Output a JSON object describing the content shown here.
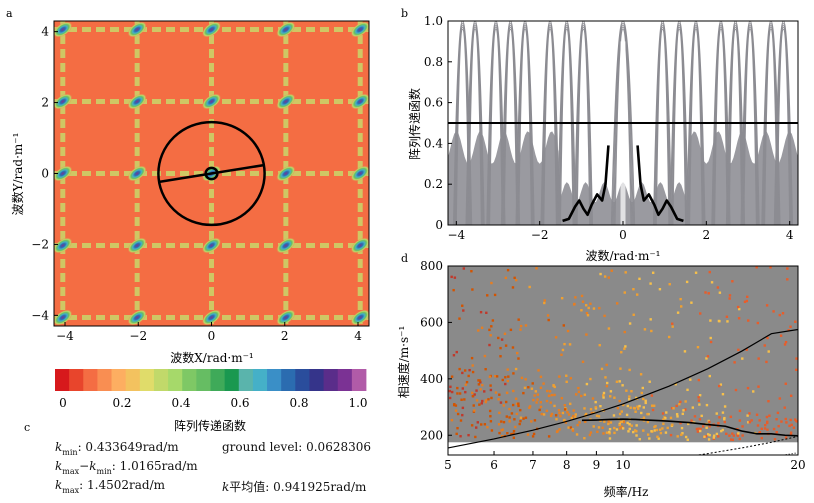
{
  "chart_data": [
    {
      "panel": "a",
      "type": "heatmap",
      "xlabel": "波数X/rad·m⁻¹",
      "ylabel": "波数Y/rad·m⁻¹",
      "xlim": [
        -4.3,
        4.3
      ],
      "ylim": [
        -4.3,
        4.3
      ],
      "xticks": [
        -4,
        -2,
        0,
        2,
        4
      ],
      "yticks": [
        -4,
        -2,
        0,
        2,
        4
      ],
      "tick_labels": [
        "−4",
        "−2",
        "0",
        "2",
        "4"
      ],
      "peak_spacing": 2.03,
      "circles_radius": [
        0.1,
        1.4502
      ],
      "line": {
        "x": [
          -1.45,
          1.45
        ],
        "y": [
          -0.24,
          0.24
        ]
      },
      "colorbar": {
        "label": "阵列传递函数",
        "ticks": [
          0,
          0.2,
          0.4,
          0.6,
          0.8,
          1.0
        ],
        "tick_labels": [
          "0",
          "0.2",
          "0.4",
          "0.6",
          "0.8",
          "1.0"
        ],
        "colors": [
          "#d7191c",
          "#e8452c",
          "#f46d43",
          "#f98e52",
          "#fdae61",
          "#f3c25f",
          "#e0dc6a",
          "#c1d96a",
          "#a6d96a",
          "#7ec865",
          "#66bd63",
          "#3faa59",
          "#1a9850",
          "#5ab4ac",
          "#45b0c8",
          "#3a8fc7",
          "#2b6cb0",
          "#2a4d9c",
          "#35348a",
          "#5a2d8a",
          "#7b3294",
          "#b15ba8"
        ]
      }
    },
    {
      "panel": "b",
      "type": "line",
      "xlabel": "波数/rad·m⁻¹",
      "ylabel": "阵列传递函数",
      "xlim": [
        -4.2,
        4.2
      ],
      "ylim": [
        0,
        1.0
      ],
      "xticks": [
        -4,
        -2,
        0,
        2,
        4
      ],
      "xtick_labels": [
        "−4",
        "−2",
        "0",
        "2",
        "4"
      ],
      "yticks": [
        0,
        0.2,
        0.4,
        0.6,
        0.8,
        1.0
      ],
      "ytick_labels": [
        "0",
        "0.2",
        "0.4",
        "0.6",
        "0.8",
        "1.0"
      ],
      "threshold": 0.5,
      "sidelobe_centers": [
        -3.85,
        -3.55,
        -3.05,
        -2.7,
        -2.35,
        -1.75,
        -1.35,
        -0.95,
        0.0,
        0.95,
        1.35,
        1.75,
        2.35,
        2.7,
        3.05,
        3.55,
        3.85
      ],
      "profile": {
        "x": [
          -1.45,
          -1.3,
          -1.15,
          -1.05,
          -0.95,
          -0.85,
          -0.75,
          -0.62,
          -0.5,
          -0.42,
          -0.35,
          0.35,
          0.42,
          0.5,
          0.62,
          0.75,
          0.85,
          0.95,
          1.05,
          1.15,
          1.3,
          1.45
        ],
        "y": [
          0.02,
          0.03,
          0.09,
          0.12,
          0.08,
          0.05,
          0.1,
          0.15,
          0.12,
          0.2,
          0.39,
          0.39,
          0.2,
          0.12,
          0.15,
          0.1,
          0.05,
          0.08,
          0.12,
          0.09,
          0.03,
          0.02
        ]
      }
    },
    {
      "panel": "d",
      "type": "scatter",
      "xlabel": "频率/Hz",
      "ylabel": "相速度/m·s⁻¹",
      "xscale": "log",
      "xlim": [
        5,
        20
      ],
      "ylim": [
        130,
        800
      ],
      "xticks": [
        5,
        6,
        7,
        8,
        9,
        10,
        20
      ],
      "yticks": [
        200,
        400,
        600,
        800
      ],
      "dispersion_curve": {
        "x": [
          8.5,
          9,
          9.5,
          10,
          10.5,
          11,
          11.5,
          12,
          13,
          14,
          15,
          16,
          17,
          18,
          19,
          20
        ],
        "y": [
          253,
          254,
          256,
          257,
          256,
          254,
          252,
          250,
          245,
          238,
          232,
          215,
          205,
          205,
          200,
          198
        ]
      },
      "kmax_curve": {
        "x": [
          5,
          6,
          7,
          8,
          9,
          10,
          12,
          14,
          16,
          18,
          20
        ],
        "y": [
          155,
          187,
          218,
          249,
          280,
          311,
          374,
          436,
          498,
          560,
          575
        ]
      },
      "kmin_curve": {
        "x": [
          5,
          8,
          10,
          12,
          14,
          16,
          18,
          20
        ],
        "y": [
          48,
          77,
          96,
          115,
          135,
          155,
          175,
          196
        ]
      },
      "kmin_curve_2": {
        "x": [
          5,
          8,
          10,
          12,
          14,
          16,
          18,
          20
        ],
        "y": [
          34,
          54,
          68,
          81,
          95,
          109,
          123,
          138
        ]
      }
    }
  ],
  "panels": {
    "a_label": "a",
    "b_label": "b",
    "c_label": "c",
    "d_label": "d"
  },
  "panel_c": {
    "kmin_sym": "k",
    "kmin_sub": "min",
    "kmin_val": ": 0.433649rad/m",
    "diff_sym1": "k",
    "diff_sub1": "max",
    "diff_minus": "−",
    "diff_sym2": "k",
    "diff_sub2": "min",
    "diff_val": ": 1.0165rad/m",
    "kmax_sym": "k",
    "kmax_sub": "max",
    "kmax_val": ": 1.4502rad/m",
    "ground_level": "ground level: 0.0628306",
    "kmean_sym": "k",
    "kmean_val": "平均值: 0.941925rad/m"
  }
}
